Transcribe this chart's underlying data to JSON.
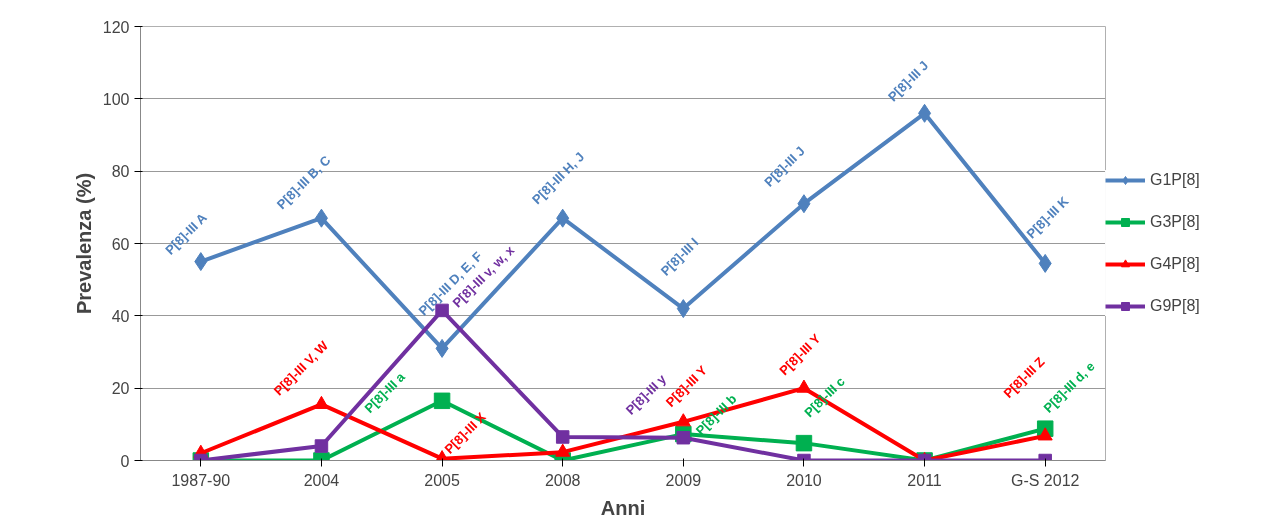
{
  "chart_data": {
    "type": "line",
    "xlabel": "Anni",
    "ylabel": "Prevalenza (%)",
    "categories": [
      "1987-90",
      "2004",
      "2005",
      "2008",
      "2009",
      "2010",
      "2011",
      "G-S 2012"
    ],
    "ylim": [
      0,
      120
    ],
    "yticks": [
      0,
      20,
      40,
      60,
      80,
      100,
      120
    ],
    "grid": "y",
    "legend": "right",
    "series": [
      {
        "name": "G1P[8]",
        "color": "#4f81bd",
        "marker": "diamond",
        "values": [
          55,
          67,
          31,
          67,
          42,
          71,
          96,
          54.5
        ]
      },
      {
        "name": "G3P[8]",
        "color": "#00b050",
        "marker": "square",
        "values": [
          0,
          0,
          16.5,
          0,
          7.3,
          4.8,
          0,
          8.8
        ]
      },
      {
        "name": "G4P[8]",
        "color": "#ff0000",
        "marker": "triangle",
        "values": [
          2,
          15.5,
          0.5,
          2.3,
          10.7,
          20,
          0,
          6.8
        ]
      },
      {
        "name": "G9P[8]",
        "color": "#7030a0",
        "marker": "square",
        "values": [
          0,
          4,
          41.5,
          6.5,
          6.3,
          0,
          0,
          0
        ]
      }
    ],
    "annotations": [
      {
        "text": "P[8]-III A",
        "x": "1987-90",
        "y": 55
      },
      {
        "text": "P[8]-III B, C",
        "x": "2004",
        "y": 67
      },
      {
        "text": "P[8]-III D, E, F",
        "x": "2005",
        "y": 31
      },
      {
        "text": "P[8]-III H, J",
        "x": "2008",
        "y": 67
      },
      {
        "text": "P[8]-III I",
        "x": "2009",
        "y": 42
      },
      {
        "text": "P[8]-III J",
        "x": "2010",
        "y": 71
      },
      {
        "text": "P[8]-III J",
        "x": "2011",
        "y": 96
      },
      {
        "text": "P[8]-III K",
        "x": "G-S 2012",
        "y": 54.5
      },
      {
        "text": "P[8]-III a",
        "x": "2005",
        "y": 16.5
      },
      {
        "text": "P[8]-III b",
        "x": "2009",
        "y": 7.3
      },
      {
        "text": "P[8]-III c",
        "x": "2010",
        "y": 4.8
      },
      {
        "text": "P[8]-III d, e",
        "x": "G-S 2012",
        "y": 8.8
      },
      {
        "text": "P[8]-III V, W",
        "x": "2004",
        "y": 15.5
      },
      {
        "text": "P[8]-III X",
        "x": "2005",
        "y": 0.5
      },
      {
        "text": "P[8]-III Y",
        "x": "2009",
        "y": 10.7
      },
      {
        "text": "P[8]-III Y",
        "x": "2010",
        "y": 20
      },
      {
        "text": "P[8]-III Z",
        "x": "G-S 2012",
        "y": 6.8
      },
      {
        "text": "P[8]-III v, w, x",
        "x": "2005",
        "y": 41.5
      },
      {
        "text": "P[8]-III y",
        "x": "2009",
        "y": 6.3
      }
    ]
  }
}
